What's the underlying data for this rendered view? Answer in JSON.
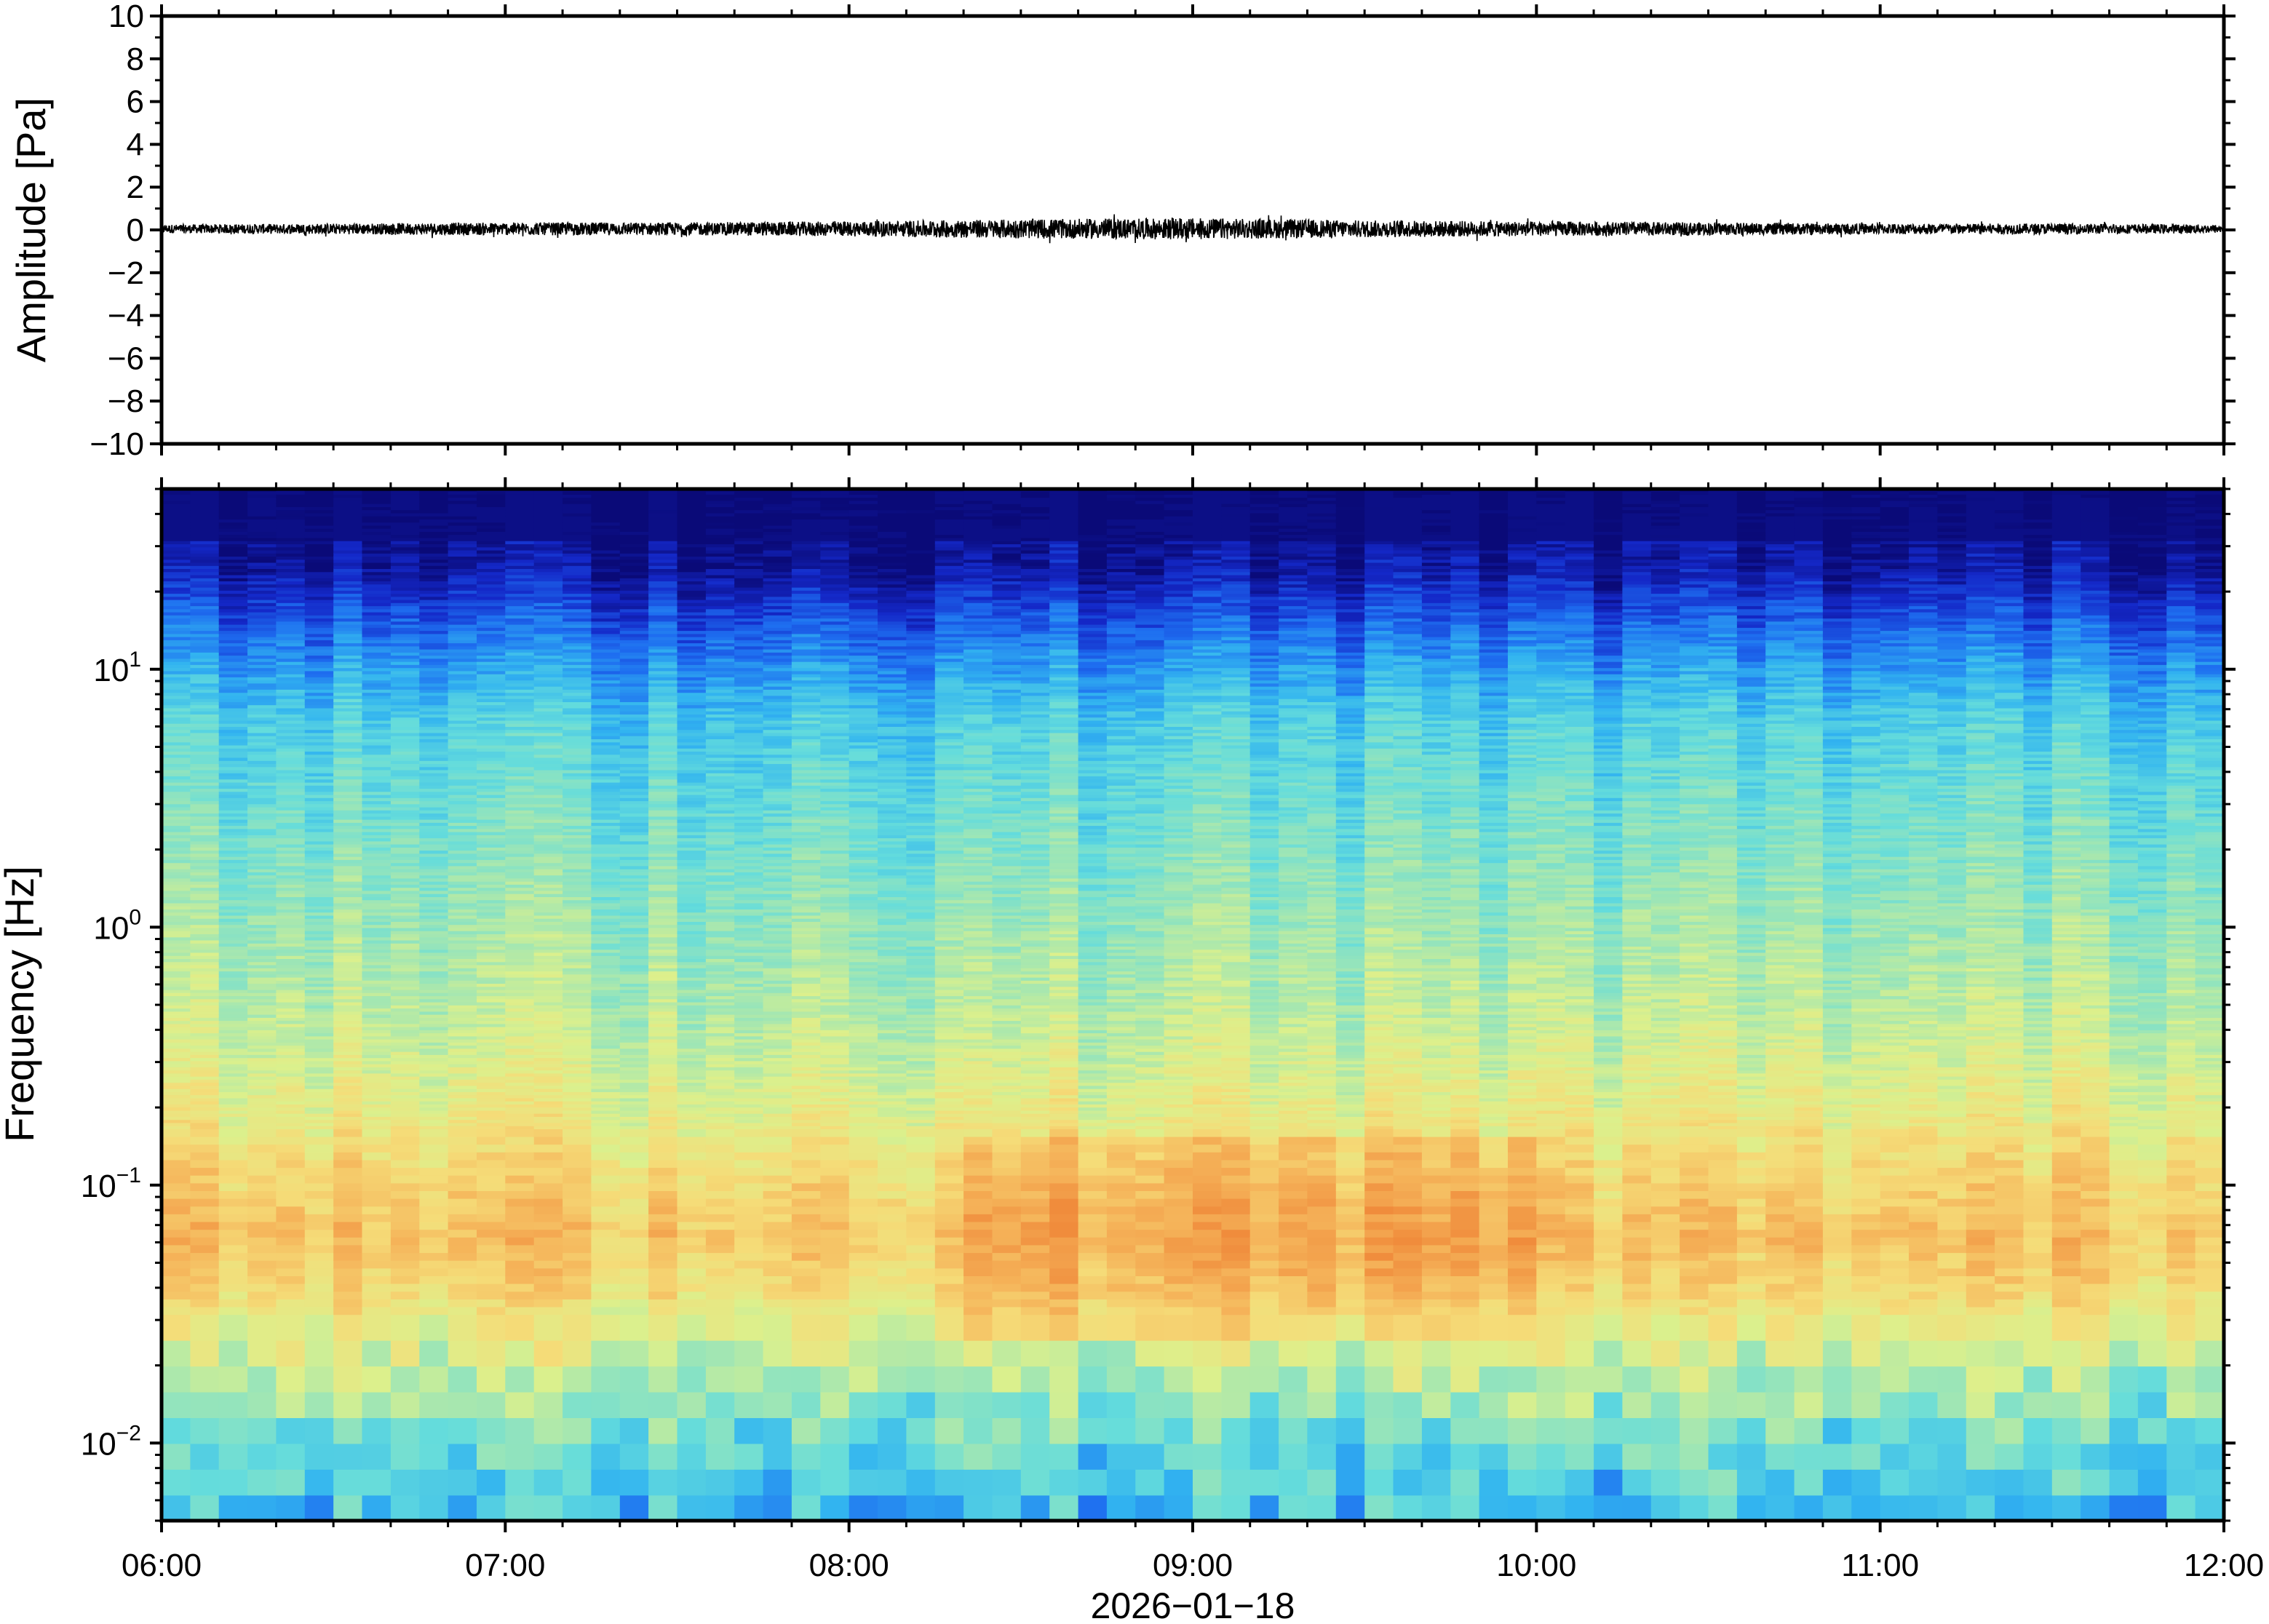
{
  "chart_data": [
    {
      "type": "line",
      "ylabel": "Amplitude [Pa]",
      "ylim": [
        -10,
        10
      ],
      "yticks": [
        "−10",
        "−8",
        "−6",
        "−4",
        "−2",
        "0",
        "2",
        "4",
        "6",
        "8",
        "10"
      ],
      "ytick_values": [
        -10,
        -8,
        -6,
        -4,
        -2,
        0,
        2,
        4,
        6,
        8,
        10
      ],
      "x_range": [
        "06:00",
        "12:00"
      ],
      "series": [
        {
          "description_amplitude_envelope": "near-zero waveform, peak amplitude under 0.6 Pa",
          "x_hours": [
            6.0,
            6.5,
            7.0,
            7.5,
            8.0,
            8.5,
            9.0,
            9.5,
            10.0,
            10.5,
            11.0,
            11.5,
            12.0
          ],
          "envelope": [
            0.2,
            0.25,
            0.3,
            0.3,
            0.35,
            0.45,
            0.5,
            0.4,
            0.35,
            0.3,
            0.25,
            0.25,
            0.2
          ]
        }
      ],
      "color": "#000000"
    },
    {
      "type": "heatmap",
      "ylabel": "Frequency [Hz]",
      "yscale": "log",
      "ylim": [
        0.005,
        50
      ],
      "yticks": [
        {
          "base": "10",
          "exp": "−2",
          "value": 0.01
        },
        {
          "base": "10",
          "exp": "−1",
          "value": 0.1
        },
        {
          "base": "10",
          "exp": "0",
          "value": 1
        },
        {
          "base": "10",
          "exp": "1",
          "value": 10
        }
      ],
      "x_categories": [
        "06:00",
        "07:00",
        "08:00",
        "09:00",
        "10:00",
        "11:00",
        "12:00"
      ],
      "xlabel": "2026−01−18",
      "colormap": [
        "#0a0a78",
        "#1428c8",
        "#1e6ef0",
        "#32b4f0",
        "#64dcdc",
        "#a0e6b4",
        "#dcf08c",
        "#f5dc78",
        "#f5b45a",
        "#f08c3c"
      ],
      "intensity_by_log10_frequency": {
        "log10_f": [
          -2.3,
          -2.0,
          -1.7,
          -1.4,
          -1.2,
          -1.0,
          -0.7,
          -0.4,
          0.0,
          0.4,
          0.8,
          1.0,
          1.2,
          1.4,
          1.7
        ],
        "relative_power": [
          0.35,
          0.45,
          0.62,
          0.78,
          0.85,
          0.8,
          0.7,
          0.62,
          0.55,
          0.48,
          0.4,
          0.3,
          0.18,
          0.05,
          0.0
        ]
      },
      "hotspot_time_window": [
        "08:20",
        "10:00"
      ]
    }
  ]
}
